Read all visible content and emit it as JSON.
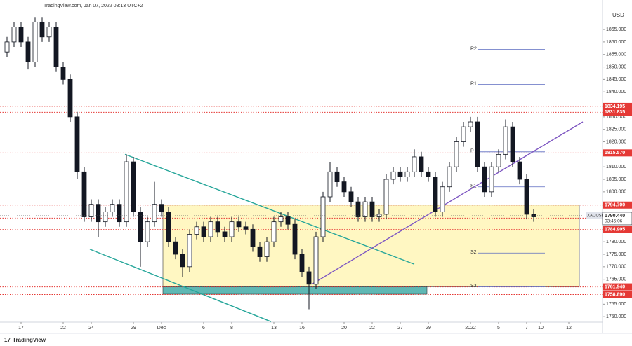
{
  "header": {
    "source": "TradingView.com, Jan 07, 2022 08:13 UTC+2",
    "logo": "TradingView"
  },
  "chart_data": {
    "type": "candlestick",
    "symbol": "XAUUSD",
    "currency_label": "USD",
    "last_price": {
      "value": 1790.44,
      "label": "1790.440"
    },
    "countdown": "03:46:06",
    "x": [
      -1,
      -0.5,
      0,
      0.5,
      1,
      1.5,
      2,
      2.5,
      3,
      3.5,
      4,
      4.5,
      5,
      5.5,
      6,
      6.5,
      7,
      7.5,
      8,
      8.5,
      9,
      9.5,
      10,
      10.5,
      11,
      11.5,
      12,
      12.5,
      13,
      13.5,
      14,
      14.5,
      15,
      15.5,
      16,
      16.5,
      17,
      17.5,
      18,
      18.5,
      19,
      19.5,
      20,
      20.5,
      21,
      21.5,
      22,
      22.5,
      23,
      23.5,
      24,
      24.5,
      25,
      25.5,
      26,
      26.5,
      27,
      27.5,
      28,
      28.5,
      29,
      29.5,
      30,
      30.5,
      31,
      31.5,
      32,
      32.5,
      33,
      33.5,
      34,
      34.5,
      35,
      35.5,
      36,
      36.5
    ],
    "open": [
      1856,
      1860,
      1866,
      1860,
      1852,
      1868,
      1862,
      1866,
      1850,
      1845,
      1830,
      1808,
      1790,
      1795,
      1788,
      1792,
      1795,
      1788,
      1812,
      1792,
      1780,
      1788,
      1795,
      1792,
      1780,
      1775,
      1770,
      1783,
      1786,
      1782,
      1788,
      1784,
      1782,
      1788,
      1786,
      1785,
      1778,
      1774,
      1780,
      1788,
      1790,
      1787,
      1775,
      1768,
      1763,
      1782,
      1798,
      1808,
      1804,
      1800,
      1796,
      1790,
      1796,
      1790,
      1791,
      1805,
      1808,
      1806,
      1808,
      1814,
      1808,
      1806,
      1792,
      1802,
      1810,
      1820,
      1826,
      1828,
      1810,
      1800,
      1810,
      1815,
      1826,
      1812,
      1805,
      1791
    ],
    "high": [
      1862,
      1868,
      1868,
      1862,
      1870,
      1870,
      1868,
      1868,
      1852,
      1847,
      1832,
      1810,
      1797,
      1797,
      1794,
      1797,
      1797,
      1815,
      1814,
      1794,
      1790,
      1804,
      1797,
      1794,
      1782,
      1777,
      1785,
      1788,
      1788,
      1790,
      1790,
      1786,
      1790,
      1790,
      1788,
      1787,
      1780,
      1782,
      1790,
      1792,
      1792,
      1789,
      1777,
      1770,
      1784,
      1800,
      1812,
      1810,
      1806,
      1802,
      1798,
      1798,
      1798,
      1793,
      1807,
      1810,
      1810,
      1810,
      1817,
      1816,
      1810,
      1808,
      1804,
      1812,
      1822,
      1828,
      1830,
      1830,
      1812,
      1812,
      1817,
      1829,
      1828,
      1814,
      1807,
      1793
    ],
    "low": [
      1854,
      1858,
      1858,
      1849,
      1850,
      1860,
      1860,
      1848,
      1843,
      1828,
      1805,
      1788,
      1788,
      1782,
      1786,
      1790,
      1786,
      1786,
      1790,
      1770,
      1778,
      1786,
      1790,
      1778,
      1773,
      1766,
      1768,
      1781,
      1780,
      1780,
      1782,
      1780,
      1780,
      1784,
      1783,
      1776,
      1772,
      1772,
      1778,
      1786,
      1785,
      1773,
      1766,
      1753,
      1761,
      1780,
      1796,
      1802,
      1798,
      1794,
      1788,
      1788,
      1788,
      1788,
      1789,
      1803,
      1804,
      1804,
      1806,
      1806,
      1804,
      1790,
      1790,
      1800,
      1808,
      1818,
      1824,
      1808,
      1798,
      1798,
      1808,
      1813,
      1810,
      1803,
      1789,
      1788
    ],
    "close": [
      1860,
      1866,
      1860,
      1852,
      1868,
      1862,
      1866,
      1850,
      1845,
      1830,
      1808,
      1790,
      1795,
      1788,
      1792,
      1795,
      1788,
      1812,
      1792,
      1780,
      1788,
      1795,
      1792,
      1780,
      1775,
      1770,
      1783,
      1786,
      1782,
      1788,
      1784,
      1782,
      1788,
      1786,
      1785,
      1778,
      1774,
      1780,
      1788,
      1790,
      1787,
      1775,
      1768,
      1763,
      1782,
      1798,
      1808,
      1804,
      1800,
      1796,
      1790,
      1796,
      1790,
      1791,
      1805,
      1808,
      1806,
      1808,
      1814,
      1808,
      1806,
      1792,
      1802,
      1810,
      1820,
      1826,
      1828,
      1810,
      1800,
      1810,
      1815,
      1826,
      1812,
      1805,
      1791,
      1790
    ],
    "up_color": "#ffffff",
    "down_color": "#131722",
    "xlim": [
      -1.5,
      41.4
    ],
    "ylim": [
      1747.8,
      1876.8
    ],
    "xticks": [
      {
        "value": 0,
        "label": "17"
      },
      {
        "value": 3,
        "label": "22"
      },
      {
        "value": 5,
        "label": "24"
      },
      {
        "value": 8,
        "label": "29"
      },
      {
        "value": 10,
        "label": "Dec"
      },
      {
        "value": 13,
        "label": "6"
      },
      {
        "value": 15,
        "label": "8"
      },
      {
        "value": 18,
        "label": "13"
      },
      {
        "value": 20,
        "label": "16"
      },
      {
        "value": 23,
        "label": "20"
      },
      {
        "value": 25,
        "label": "22"
      },
      {
        "value": 27,
        "label": "27"
      },
      {
        "value": 29,
        "label": "29"
      },
      {
        "value": 32,
        "label": "2022"
      },
      {
        "value": 34,
        "label": "5"
      },
      {
        "value": 36,
        "label": "7"
      },
      {
        "value": 37,
        "label": "10"
      },
      {
        "value": 39,
        "label": "12"
      }
    ],
    "yticks": [
      {
        "value": 1750,
        "label": "1750.000"
      },
      {
        "value": 1755,
        "label": "1755.000"
      },
      {
        "value": 1765,
        "label": "1765.000"
      },
      {
        "value": 1770,
        "label": "1770.000"
      },
      {
        "value": 1775,
        "label": "1775.000"
      },
      {
        "value": 1780,
        "label": "1780.000"
      },
      {
        "value": 1800,
        "label": "1800.000"
      },
      {
        "value": 1805,
        "label": "1805.000"
      },
      {
        "value": 1810,
        "label": "1810.000"
      },
      {
        "value": 1820,
        "label": "1820.000"
      },
      {
        "value": 1825,
        "label": "1825.000"
      },
      {
        "value": 1830,
        "label": "1830.000"
      },
      {
        "value": 1840,
        "label": "1840.000"
      },
      {
        "value": 1845,
        "label": "1845.000"
      },
      {
        "value": 1850,
        "label": "1850.000"
      },
      {
        "value": 1855,
        "label": "1855.000"
      },
      {
        "value": 1860,
        "label": "1860.000"
      },
      {
        "value": 1865,
        "label": "1865.000"
      }
    ],
    "levels": [
      {
        "value": 1834.195,
        "label": "1834.195"
      },
      {
        "value": 1831.835,
        "label": "1831.835"
      },
      {
        "value": 1815.57,
        "label": "1815.570"
      },
      {
        "value": 1794.7,
        "label": "1794.700"
      },
      {
        "value": 1789.494,
        "label": "1789.494"
      },
      {
        "value": 1784.905,
        "label": "1784.905"
      },
      {
        "value": 1761.94,
        "label": "1761.940"
      },
      {
        "value": 1758.89,
        "label": "1758.890"
      }
    ],
    "level_color": "#e53935",
    "pivots": [
      {
        "name": "R2",
        "value": 1857
      },
      {
        "name": "R1",
        "value": 1843
      },
      {
        "name": "P",
        "value": 1816
      },
      {
        "name": "S1",
        "value": 1802
      },
      {
        "name": "S2",
        "value": 1775.5
      },
      {
        "name": "S3",
        "value": 1762
      }
    ],
    "pivot_x": [
      32,
      37.3
    ],
    "zones": [
      {
        "x": [
          10.1,
          39.75
        ],
        "y": [
          1762,
          1794.7
        ],
        "color": "#fff7c2"
      },
      {
        "x": [
          10.1,
          28.9
        ],
        "y": [
          1759,
          1762
        ],
        "color": "#5fb8b4"
      }
    ],
    "trendlines": [
      {
        "x": [
          7.4,
          28
        ],
        "y": [
          1815,
          1771
        ],
        "color": "#26a69a"
      },
      {
        "x": [
          4.9,
          17.8
        ],
        "y": [
          1777,
          1748
        ],
        "color": "#26a69a"
      },
      {
        "x": [
          20.7,
          40
        ],
        "y": [
          1763,
          1828
        ],
        "color": "#7e57c2"
      }
    ]
  }
}
